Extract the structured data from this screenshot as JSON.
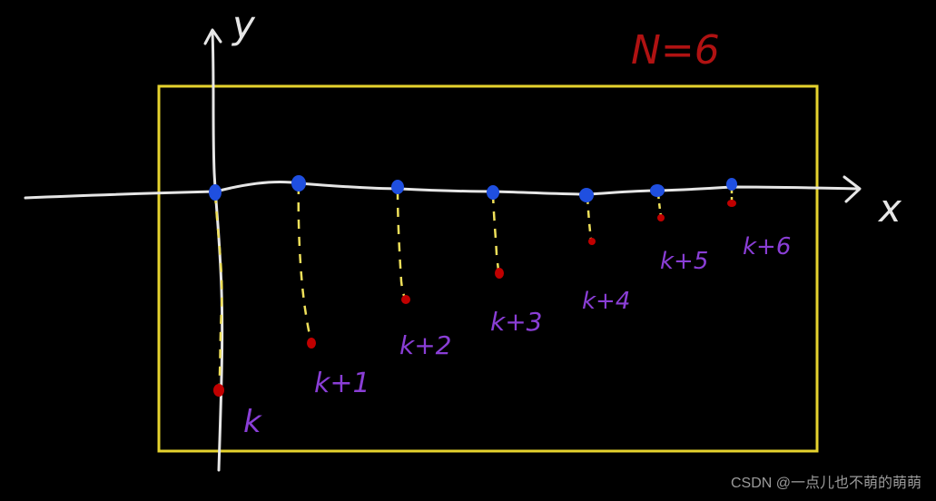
{
  "annotation": "N=6",
  "axes": {
    "x_label": "x",
    "y_label": "y"
  },
  "points": [
    {
      "label": "k"
    },
    {
      "label": "k+1"
    },
    {
      "label": "k+2"
    },
    {
      "label": "k+3"
    },
    {
      "label": "k+4"
    },
    {
      "label": "k+5"
    },
    {
      "label": "k+6"
    }
  ],
  "watermark": "CSDN @一点儿也不萌的萌萌",
  "colors": {
    "box": "#e6d32e",
    "axis": "#e6e6e6",
    "blue_dot": "#1f4fe0",
    "red_dot": "#c00000",
    "dash": "#efe05a",
    "label": "#8a3ed6",
    "annotation": "#b01212"
  }
}
